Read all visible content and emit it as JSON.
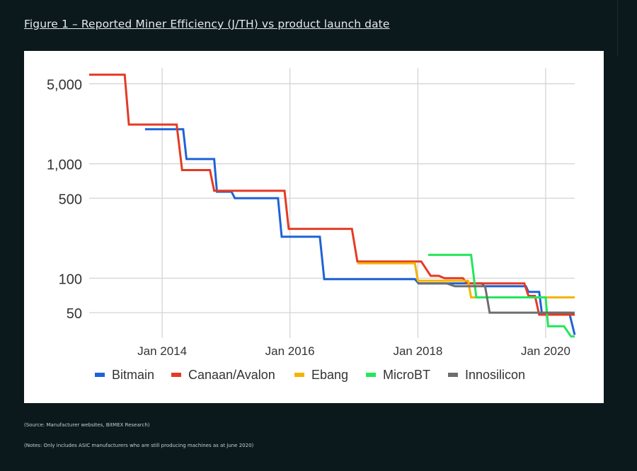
{
  "header": {
    "title": "Figure 1 – Reported Miner Efficiency (J/TH) vs product launch date"
  },
  "footer": {
    "source": "(Source: Manufacturer websites, BitMEX Research)",
    "notes": "(Notes: Only includes ASIC manufacturers who are still producing machines as at June 2020)"
  },
  "chart_data": {
    "type": "line",
    "title": "",
    "xlabel": "",
    "ylabel": "",
    "y_scale": "log",
    "y_ticks": [
      50,
      100,
      500,
      1000,
      5000
    ],
    "y_tick_labels": [
      "50",
      "100",
      "500",
      "1,000",
      "5,000"
    ],
    "y_range": [
      30,
      6500
    ],
    "x_range": [
      "2012-11-10",
      "2020-06-15"
    ],
    "x_ticks": [
      "2014-01-01",
      "2016-01-01",
      "2018-01-01",
      "2020-01-01"
    ],
    "x_tick_labels": [
      "Jan 2014",
      "Jan 2016",
      "Jan 2018",
      "Jan 2020"
    ],
    "grid": true,
    "legend_position": "bottom",
    "series": [
      {
        "name": "Bitmain",
        "color": "#1f62d6",
        "points": [
          [
            "2013-09-25",
            2000
          ],
          [
            "2014-05-01",
            2000
          ],
          [
            "2014-05-20",
            1100
          ],
          [
            "2014-10-25",
            1100
          ],
          [
            "2014-11-10",
            570
          ],
          [
            "2015-02-01",
            570
          ],
          [
            "2015-02-20",
            500
          ],
          [
            "2015-10-25",
            500
          ],
          [
            "2015-11-15",
            230
          ],
          [
            "2016-06-20",
            230
          ],
          [
            "2016-07-15",
            98
          ],
          [
            "2017-12-15",
            98
          ],
          [
            "2018-01-05",
            90
          ],
          [
            "2019-01-01",
            90
          ],
          [
            "2019-01-15",
            85
          ],
          [
            "2019-09-10",
            85
          ],
          [
            "2019-09-25",
            76
          ],
          [
            "2019-11-25",
            76
          ],
          [
            "2019-12-10",
            50
          ],
          [
            "2020-05-15",
            50
          ],
          [
            "2020-06-15",
            32
          ]
        ]
      },
      {
        "name": "Canaan/Avalon",
        "color": "#e53a24",
        "points": [
          [
            "2012-11-10",
            6000
          ],
          [
            "2013-06-01",
            6000
          ],
          [
            "2013-06-25",
            2200
          ],
          [
            "2014-03-25",
            2200
          ],
          [
            "2014-04-25",
            880
          ],
          [
            "2014-10-01",
            880
          ],
          [
            "2014-10-25",
            580
          ],
          [
            "2015-12-01",
            580
          ],
          [
            "2015-12-25",
            270
          ],
          [
            "2016-12-20",
            270
          ],
          [
            "2017-01-20",
            140
          ],
          [
            "2018-01-20",
            140
          ],
          [
            "2018-03-15",
            105
          ],
          [
            "2018-05-01",
            105
          ],
          [
            "2018-06-01",
            100
          ],
          [
            "2018-09-15",
            100
          ],
          [
            "2018-10-10",
            90
          ],
          [
            "2019-09-01",
            90
          ],
          [
            "2019-09-25",
            70
          ],
          [
            "2019-11-01",
            70
          ],
          [
            "2019-11-25",
            48
          ],
          [
            "2020-06-15",
            48
          ]
        ]
      },
      {
        "name": "Ebang",
        "color": "#f4b400",
        "points": [
          [
            "2017-01-20",
            135
          ],
          [
            "2017-12-15",
            135
          ],
          [
            "2018-01-01",
            95
          ],
          [
            "2018-10-15",
            95
          ],
          [
            "2018-11-01",
            68
          ],
          [
            "2020-06-15",
            68
          ]
        ]
      },
      {
        "name": "MicroBT",
        "color": "#24e65b",
        "points": [
          [
            "2018-03-01",
            160
          ],
          [
            "2018-11-01",
            160
          ],
          [
            "2018-12-01",
            68
          ],
          [
            "2020-01-01",
            68
          ],
          [
            "2020-01-15",
            38
          ],
          [
            "2020-04-15",
            38
          ],
          [
            "2020-05-25",
            31
          ],
          [
            "2020-06-15",
            31
          ]
        ]
      },
      {
        "name": "Innosilicon",
        "color": "#6e6e6e",
        "points": [
          [
            "2018-01-01",
            90
          ],
          [
            "2018-06-15",
            90
          ],
          [
            "2018-08-01",
            85
          ],
          [
            "2019-01-20",
            85
          ],
          [
            "2019-02-15",
            50
          ],
          [
            "2020-06-15",
            50
          ]
        ]
      }
    ]
  }
}
